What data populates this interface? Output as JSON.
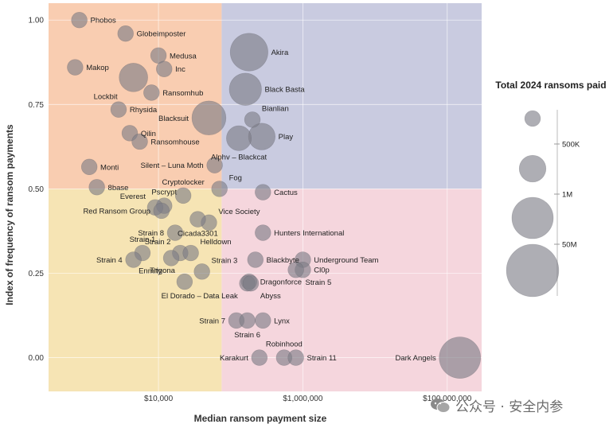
{
  "chart_data": {
    "type": "scatter",
    "xlabel": "Median ransom payment size",
    "ylabel": "Index of frequency of ransom payments",
    "xscale": "log",
    "xlim": [
      300,
      300000000
    ],
    "ylim": [
      -0.1,
      1.05
    ],
    "x_tick_values": [
      10000,
      1000000,
      100000000
    ],
    "x_tick_labels": [
      "$10,000",
      "$1,000,000",
      "$100,000,000"
    ],
    "y_tick_values": [
      0,
      0.25,
      0.5,
      0.75,
      1.0
    ],
    "y_tick_labels": [
      "0.00",
      "0.25",
      "0.50",
      "0.75",
      "1.00"
    ],
    "quadrant_split": {
      "x": 75000,
      "y": 0.5
    },
    "quadrant_colors": {
      "top_left": "#f9cdb1",
      "top_right": "#c9cbe0",
      "bottom_left": "#f6e4b4",
      "bottom_right": "#f5d6dd"
    },
    "point_color": "#7c7c86",
    "legend": {
      "title": "Total 2024 ransoms paid",
      "entries": [
        {
          "label": "500K",
          "size": 6
        },
        {
          "label": "1M",
          "size": 12
        },
        {
          "label": "50M",
          "size": 20
        },
        {
          "label": "",
          "size": 26
        }
      ]
    },
    "points": [
      {
        "name": "Phobos",
        "x": 800,
        "y": 1.0,
        "size": 6,
        "label_pos": "right"
      },
      {
        "name": "Globeimposter",
        "x": 3500,
        "y": 0.96,
        "size": 6,
        "label_pos": "right"
      },
      {
        "name": "Medusa",
        "x": 10000,
        "y": 0.895,
        "size": 6,
        "label_pos": "right"
      },
      {
        "name": "Inc",
        "x": 12000,
        "y": 0.855,
        "size": 6,
        "label_pos": "right"
      },
      {
        "name": "Makop",
        "x": 700,
        "y": 0.86,
        "size": 6,
        "label_pos": "right"
      },
      {
        "name": "Lockbit",
        "x": 4500,
        "y": 0.83,
        "size": 13,
        "label_pos": "left-below"
      },
      {
        "name": "Ransomhub",
        "x": 8000,
        "y": 0.785,
        "size": 6,
        "label_pos": "right"
      },
      {
        "name": "Akira",
        "x": 180000,
        "y": 0.905,
        "size": 18,
        "label_pos": "right"
      },
      {
        "name": "Black Basta",
        "x": 160000,
        "y": 0.795,
        "size": 15,
        "label_pos": "right"
      },
      {
        "name": "Rhysida",
        "x": 2800,
        "y": 0.735,
        "size": 6,
        "label_pos": "right"
      },
      {
        "name": "Blacksuit",
        "x": 50000,
        "y": 0.71,
        "size": 16,
        "label_pos": "left"
      },
      {
        "name": "Bianlian",
        "x": 200000,
        "y": 0.705,
        "size": 6,
        "label_pos": "right-above"
      },
      {
        "name": "Qilin",
        "x": 4000,
        "y": 0.665,
        "size": 6,
        "label_pos": "right"
      },
      {
        "name": "Ransomhouse",
        "x": 5500,
        "y": 0.64,
        "size": 6,
        "label_pos": "right"
      },
      {
        "name": "Play",
        "x": 270000,
        "y": 0.655,
        "size": 12,
        "label_pos": "right"
      },
      {
        "name": "Alphv – Blackcat",
        "x": 130000,
        "y": 0.65,
        "size": 11,
        "label_pos": "below"
      },
      {
        "name": "Monti",
        "x": 1100,
        "y": 0.565,
        "size": 6,
        "label_pos": "right"
      },
      {
        "name": "Silent – Luna Moth",
        "x": 60000,
        "y": 0.57,
        "size": 6,
        "label_pos": "left"
      },
      {
        "name": "8base",
        "x": 1400,
        "y": 0.505,
        "size": 6,
        "label_pos": "right"
      },
      {
        "name": "Fog",
        "x": 70000,
        "y": 0.5,
        "size": 6,
        "label_pos": "right-above"
      },
      {
        "name": "Cactus",
        "x": 280000,
        "y": 0.49,
        "size": 6,
        "label_pos": "right"
      },
      {
        "name": "Cryptolocker",
        "x": 22000,
        "y": 0.48,
        "size": 6,
        "label_pos": "above"
      },
      {
        "name": "Pscrypt",
        "x": 12000,
        "y": 0.45,
        "size": 6,
        "label_pos": "above"
      },
      {
        "name": "Everest",
        "x": 9000,
        "y": 0.445,
        "size": 6,
        "label_pos": "left-above"
      },
      {
        "name": "Red Ransom Group",
        "x": 11000,
        "y": 0.435,
        "size": 6,
        "label_pos": "left"
      },
      {
        "name": "Vice Society",
        "x": 50000,
        "y": 0.4,
        "size": 6,
        "label_pos": "right-above"
      },
      {
        "name": "Cicada3301",
        "x": 35000,
        "y": 0.41,
        "size": 6,
        "label_pos": "below"
      },
      {
        "name": "Strain 8",
        "x": 17000,
        "y": 0.37,
        "size": 6,
        "label_pos": "left"
      },
      {
        "name": "Hunters International",
        "x": 280000,
        "y": 0.37,
        "size": 6,
        "label_pos": "right"
      },
      {
        "name": "Strain 1",
        "x": 6000,
        "y": 0.31,
        "size": 6,
        "label_pos": "above"
      },
      {
        "name": "Strain 2",
        "x": 20000,
        "y": 0.31,
        "size": 6,
        "label_pos": "left-above"
      },
      {
        "name": "Helldown",
        "x": 28000,
        "y": 0.31,
        "size": 6,
        "label_pos": "right-above"
      },
      {
        "name": "Strain 4",
        "x": 4500,
        "y": 0.29,
        "size": 6,
        "label_pos": "left"
      },
      {
        "name": "Enmity",
        "x": 15000,
        "y": 0.295,
        "size": 6,
        "label_pos": "left-below"
      },
      {
        "name": "Blackbyte",
        "x": 220000,
        "y": 0.29,
        "size": 6,
        "label_pos": "right"
      },
      {
        "name": "Underground Team",
        "x": 1000000,
        "y": 0.29,
        "size": 6,
        "label_pos": "right"
      },
      {
        "name": "Cl0p",
        "x": 1000000,
        "y": 0.26,
        "size": 6,
        "label_pos": "right"
      },
      {
        "name": "Strain 3",
        "x": 40000,
        "y": 0.255,
        "size": 6,
        "label_pos": "right-above"
      },
      {
        "name": "Trigona",
        "x": 23000,
        "y": 0.225,
        "size": 6,
        "label_pos": "left-above"
      },
      {
        "name": "Dragonforce",
        "x": 180000,
        "y": 0.225,
        "size": 6,
        "label_pos": "right"
      },
      {
        "name": "Strain 5",
        "x": 800000,
        "y": 0.26,
        "size": 6,
        "label_pos": "right-below"
      },
      {
        "name": "El Dorado – Data Leak",
        "x": 170000,
        "y": 0.22,
        "size": 6,
        "label_pos": "left-below"
      },
      {
        "name": "Abyss",
        "x": 190000,
        "y": 0.22,
        "size": 6,
        "label_pos": "right-below"
      },
      {
        "name": "Strain 7",
        "x": 120000,
        "y": 0.11,
        "size": 6,
        "label_pos": "left"
      },
      {
        "name": "Lynx",
        "x": 280000,
        "y": 0.11,
        "size": 6,
        "label_pos": "right"
      },
      {
        "name": "Strain 6",
        "x": 170000,
        "y": 0.11,
        "size": 6,
        "label_pos": "below"
      },
      {
        "name": "Robinhood",
        "x": 550000,
        "y": 0.0,
        "size": 6,
        "label_pos": "above"
      },
      {
        "name": "Karakurt",
        "x": 250000,
        "y": 0.0,
        "size": 6,
        "label_pos": "left"
      },
      {
        "name": "Strain 11",
        "x": 800000,
        "y": 0.0,
        "size": 6,
        "label_pos": "right"
      },
      {
        "name": "Dark Angels",
        "x": 150000000,
        "y": 0.0,
        "size": 20,
        "label_pos": "left"
      }
    ]
  },
  "watermark": {
    "text": "公众号 · 安全内参"
  }
}
